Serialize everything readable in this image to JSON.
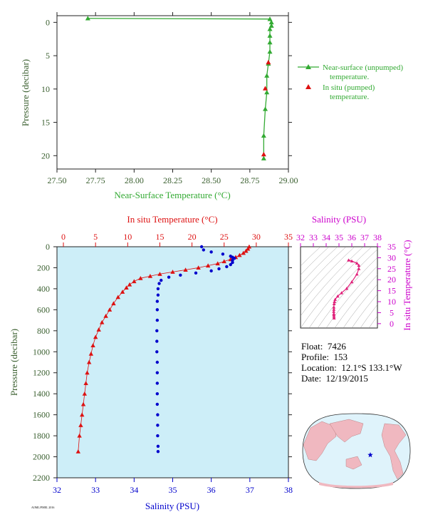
{
  "colors": {
    "near_surface": "#33aa33",
    "in_situ": "#dd1111",
    "salinity": "#0000cc",
    "salinity_axis": "#cc00cc",
    "axis_text_green": "#3a5f2f",
    "panel_bg": "#cdeef8",
    "land": "#f0b8c0",
    "ocean": "#dff3fb",
    "float_star": "#0000cc"
  },
  "meta": {
    "float_label": "Float:",
    "float_value": "7426",
    "profile_label": "Profile:",
    "profile_value": "153",
    "location_label": "Location:",
    "location_value": "12.1°S  133.1°W",
    "date_label": "Date:",
    "date_value": "12/19/2015",
    "footer": "AOML/PMEL 2016"
  },
  "chart_data": [
    {
      "type": "line",
      "xlabel": "Near-Surface Temperature (°C)",
      "ylabel": "Pressure (decibar)",
      "xlim": [
        27.5,
        29.0
      ],
      "ylim": [
        22,
        -1
      ],
      "xticks": [
        "27.50",
        "27.75",
        "28.00",
        "28.25",
        "28.50",
        "28.75",
        "29.00"
      ],
      "xtick_values": [
        27.5,
        27.75,
        28.0,
        28.25,
        28.5,
        28.75,
        29.0
      ],
      "yticks": [
        "0",
        "5",
        "10",
        "15",
        "20"
      ],
      "ytick_values": [
        0,
        5,
        10,
        15,
        20
      ],
      "legend_position": "right",
      "series": [
        {
          "name": "Near-surface (unpumped) temperature.",
          "marker": "triangle",
          "x": [
            27.7,
            28.88,
            28.89,
            28.89,
            28.88,
            28.88,
            28.88,
            28.88,
            28.87,
            28.86,
            28.86,
            28.85,
            28.84,
            28.84
          ],
          "y": [
            -0.6,
            -0.5,
            0.0,
            0.5,
            1.0,
            2.0,
            3.0,
            4.4,
            6.2,
            8.0,
            10.5,
            13.0,
            17.0,
            20.4
          ]
        },
        {
          "name": "In situ (pumped) temperature.",
          "marker": "triangle",
          "x": [
            28.87,
            28.85,
            28.84
          ],
          "y": [
            6.0,
            9.9,
            19.8
          ]
        }
      ]
    },
    {
      "type": "scatter",
      "xlabel_top": "In situ Temperature (°C)",
      "xlabel_bottom": "Salinity (PSU)",
      "ylabel": "Pressure (decibar)",
      "temp_lim": [
        -1,
        35
      ],
      "sal_lim": [
        32,
        38
      ],
      "ylim": [
        2200,
        0
      ],
      "temp_ticks": [
        "0",
        "5",
        "10",
        "15",
        "20",
        "25",
        "30",
        "35"
      ],
      "temp_tick_values": [
        0,
        5,
        10,
        15,
        20,
        25,
        30,
        35
      ],
      "sal_ticks": [
        "32",
        "33",
        "34",
        "35",
        "36",
        "37",
        "38"
      ],
      "sal_tick_values": [
        32,
        33,
        34,
        35,
        36,
        37,
        38
      ],
      "pressure_ticks": [
        "0",
        "200",
        "400",
        "600",
        "800",
        "1000",
        "1200",
        "1400",
        "1600",
        "1800",
        "2000",
        "2200"
      ],
      "pressure_tick_values": [
        0,
        200,
        400,
        600,
        800,
        1000,
        1200,
        1400,
        1600,
        1800,
        2000,
        2200
      ],
      "series": [
        {
          "name": "In situ Temperature (°C)",
          "marker": "triangle",
          "temperature": [
            28.9,
            28.7,
            28.4,
            28.0,
            27.4,
            26.8,
            26.0,
            25.0,
            24.0,
            22.5,
            21.0,
            19.0,
            17.0,
            15.0,
            13.5,
            12.0,
            11.0,
            10.3,
            9.8,
            9.2,
            8.5,
            7.8,
            7.2,
            6.6,
            6.0,
            5.5,
            5.0,
            4.6,
            4.3,
            4.0,
            3.7,
            3.5,
            3.3,
            3.1,
            2.9,
            2.7,
            2.5,
            2.3
          ],
          "pressure": [
            0,
            20,
            40,
            60,
            80,
            100,
            120,
            140,
            160,
            180,
            200,
            220,
            240,
            260,
            280,
            300,
            330,
            360,
            390,
            430,
            480,
            540,
            600,
            660,
            720,
            790,
            860,
            940,
            1020,
            1100,
            1200,
            1300,
            1400,
            1500,
            1600,
            1700,
            1800,
            1950
          ]
        },
        {
          "name": "Salinity (PSU)",
          "marker": "circle",
          "salinity": [
            35.75,
            35.8,
            36.0,
            36.3,
            36.5,
            36.55,
            36.6,
            36.55,
            36.55,
            36.5,
            36.4,
            36.2,
            36.0,
            35.6,
            35.2,
            34.9,
            34.7,
            34.65,
            34.62,
            34.62,
            34.6,
            34.6,
            34.6,
            34.59,
            34.59,
            34.59,
            34.6,
            34.6,
            34.6,
            34.6,
            34.6,
            34.61,
            34.61,
            34.61,
            34.62,
            34.62
          ],
          "pressure": [
            0,
            30,
            50,
            70,
            90,
            100,
            110,
            130,
            150,
            170,
            190,
            210,
            230,
            250,
            270,
            290,
            320,
            350,
            400,
            460,
            520,
            600,
            700,
            800,
            900,
            1000,
            1100,
            1200,
            1300,
            1400,
            1500,
            1600,
            1700,
            1800,
            1900,
            1950
          ]
        }
      ]
    },
    {
      "type": "scatter",
      "xlabel": "Salinity (PSU)",
      "ylabel": "In situ Temperature (°C)",
      "xlim": [
        32,
        38
      ],
      "ylim": [
        -2,
        35
      ],
      "xticks": [
        "32",
        "33",
        "34",
        "35",
        "36",
        "37",
        "38"
      ],
      "xtick_values": [
        32,
        33,
        34,
        35,
        36,
        37,
        38
      ],
      "yticks": [
        "0",
        "5",
        "10",
        "15",
        "20",
        "25",
        "30",
        "35"
      ],
      "ytick_values": [
        0,
        5,
        10,
        15,
        20,
        25,
        30,
        35
      ],
      "series": [
        {
          "marker": "triangle",
          "salinity": [
            35.75,
            36.0,
            36.4,
            36.55,
            36.55,
            36.4,
            36.0,
            35.6,
            35.2,
            34.9,
            34.7,
            34.65,
            34.62,
            34.6,
            34.6,
            34.59,
            34.6,
            34.6,
            34.61,
            34.62
          ],
          "temperature": [
            28.9,
            28.5,
            27.5,
            26.5,
            25.0,
            22.5,
            19.0,
            16.0,
            14.0,
            12.5,
            11.0,
            10.0,
            9.0,
            7.5,
            6.5,
            5.5,
            4.5,
            4.0,
            3.3,
            2.5
          ]
        }
      ]
    }
  ]
}
